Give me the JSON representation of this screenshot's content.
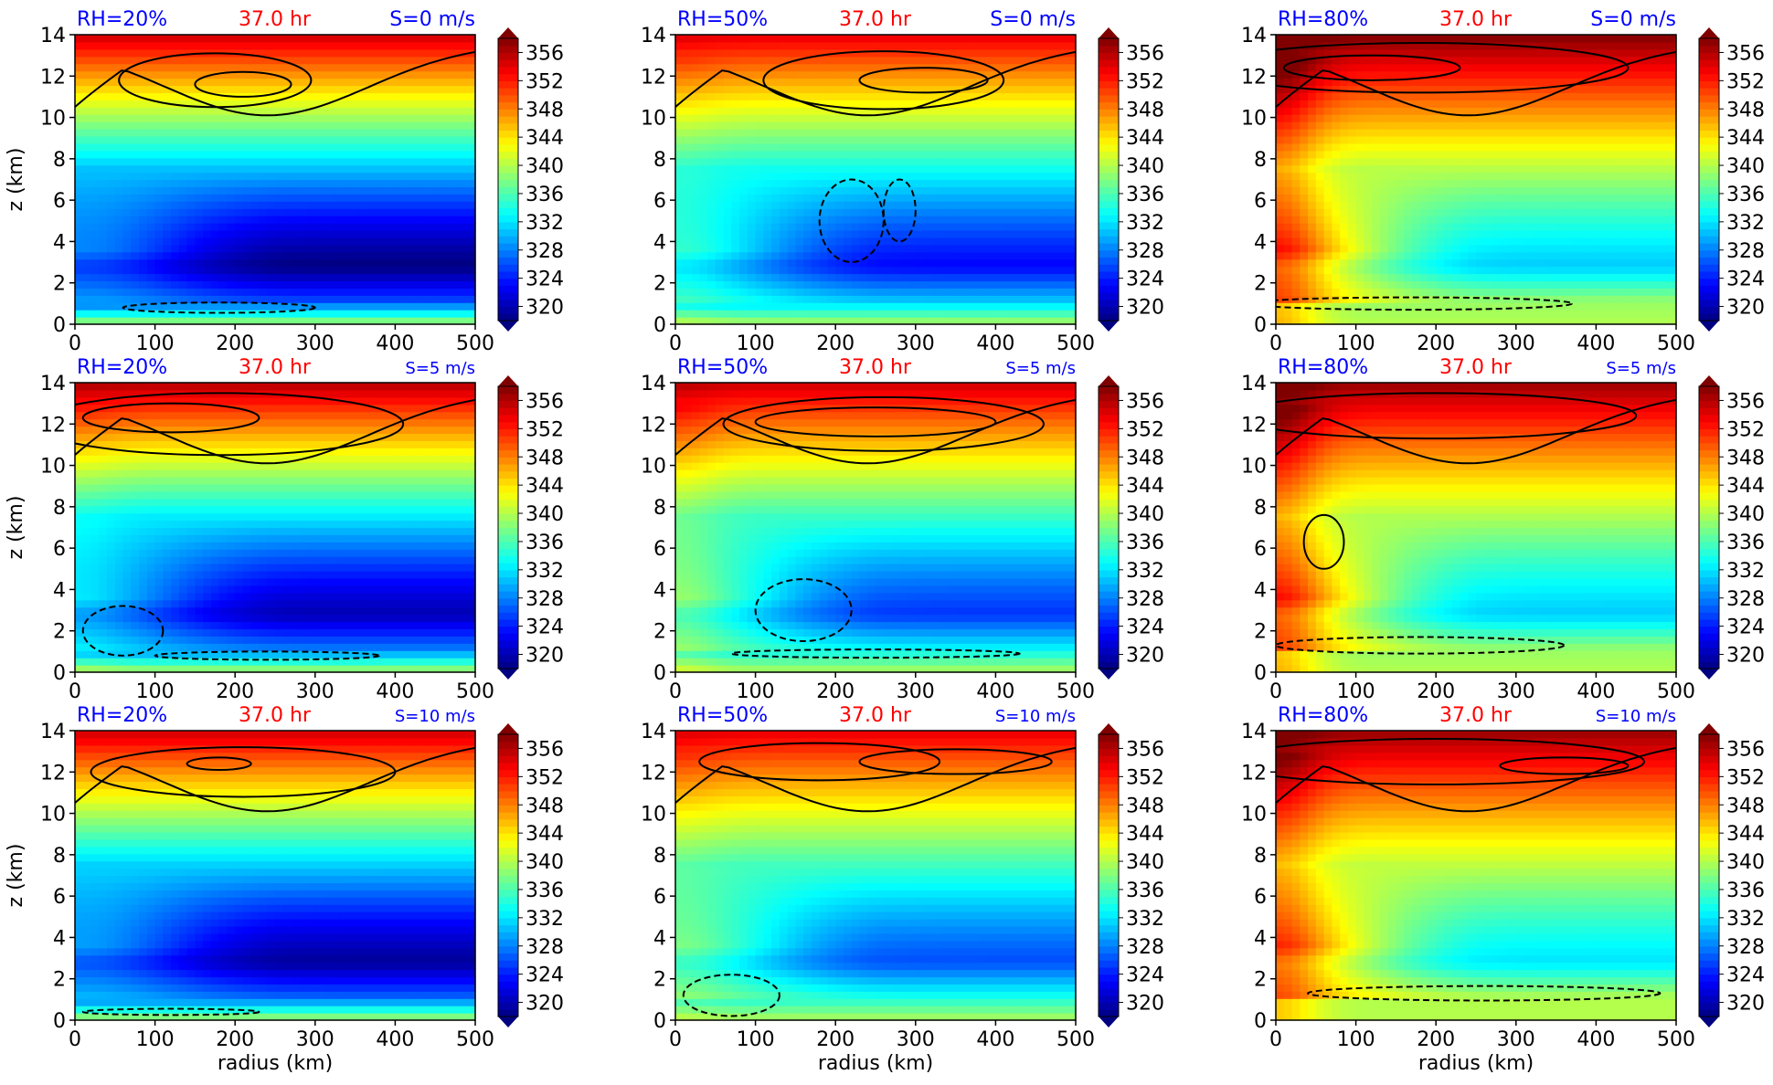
{
  "figure": {
    "xlabel": "radius (km)",
    "ylabel": "z (km)",
    "x_ticks": [
      "0",
      "100",
      "200",
      "300",
      "400",
      "500"
    ],
    "y_ticks": [
      "0",
      "2",
      "4",
      "6",
      "8",
      "10",
      "12",
      "14"
    ],
    "colorbar_ticks": [
      "320",
      "324",
      "328",
      "332",
      "336",
      "340",
      "344",
      "348",
      "352",
      "356"
    ],
    "colors": {
      "rh_label": "#0000ff",
      "time_label": "#ff0000",
      "shear_label": "#0000ff"
    }
  },
  "chart_data": [
    {
      "type": "heatmap",
      "rh": "RH=20%",
      "time": "37.0 hr",
      "shear": "S=0 m/s",
      "xlim": [
        0,
        500
      ],
      "ylim": [
        0,
        14
      ],
      "clim": [
        320,
        358
      ]
    },
    {
      "type": "heatmap",
      "rh": "RH=50%",
      "time": "37.0 hr",
      "shear": "S=0 m/s",
      "xlim": [
        0,
        500
      ],
      "ylim": [
        0,
        14
      ],
      "clim": [
        320,
        358
      ]
    },
    {
      "type": "heatmap",
      "rh": "RH=80%",
      "time": "37.0 hr",
      "shear": "S=0 m/s",
      "xlim": [
        0,
        500
      ],
      "ylim": [
        0,
        14
      ],
      "clim": [
        320,
        358
      ]
    },
    {
      "type": "heatmap",
      "rh": "RH=20%",
      "time": "37.0 hr",
      "shear": "S=5 m/s",
      "xlim": [
        0,
        500
      ],
      "ylim": [
        0,
        14
      ],
      "clim": [
        320,
        358
      ]
    },
    {
      "type": "heatmap",
      "rh": "RH=50%",
      "time": "37.0 hr",
      "shear": "S=5 m/s",
      "xlim": [
        0,
        500
      ],
      "ylim": [
        0,
        14
      ],
      "clim": [
        320,
        358
      ]
    },
    {
      "type": "heatmap",
      "rh": "RH=80%",
      "time": "37.0 hr",
      "shear": "S=5 m/s",
      "xlim": [
        0,
        500
      ],
      "ylim": [
        0,
        14
      ],
      "clim": [
        320,
        358
      ]
    },
    {
      "type": "heatmap",
      "rh": "RH=20%",
      "time": "37.0 hr",
      "shear": "S=10 m/s",
      "xlim": [
        0,
        500
      ],
      "ylim": [
        0,
        14
      ],
      "clim": [
        320,
        358
      ]
    },
    {
      "type": "heatmap",
      "rh": "RH=50%",
      "time": "37.0 hr",
      "shear": "S=10 m/s",
      "xlim": [
        0,
        500
      ],
      "ylim": [
        0,
        14
      ],
      "clim": [
        320,
        358
      ]
    },
    {
      "type": "heatmap",
      "rh": "RH=80%",
      "time": "37.0 hr",
      "shear": "S=10 m/s",
      "xlim": [
        0,
        500
      ],
      "ylim": [
        0,
        14
      ],
      "clim": [
        320,
        358
      ]
    }
  ]
}
